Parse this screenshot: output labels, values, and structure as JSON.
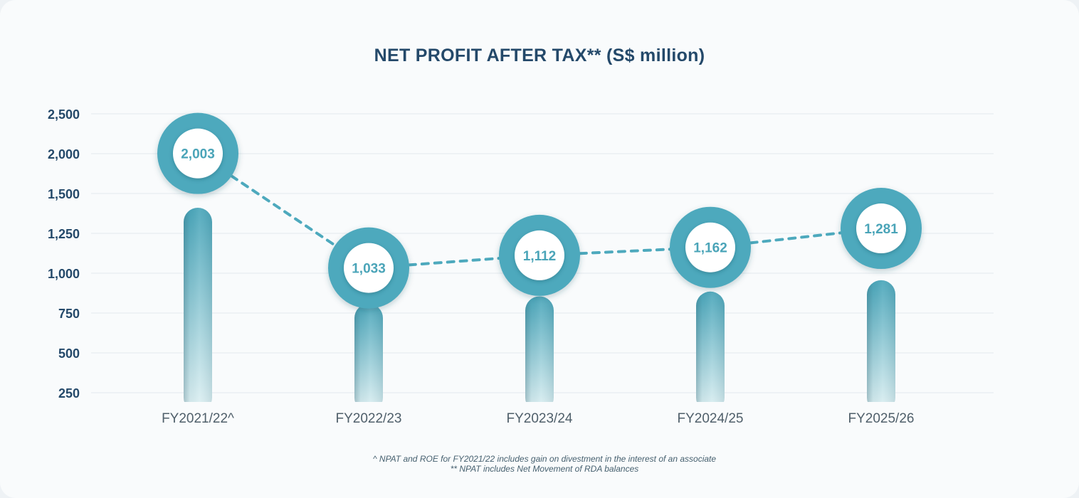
{
  "chart_data": {
    "type": "bar",
    "title": "NET PROFIT AFTER TAX** (S$ million)",
    "xlabel": "",
    "ylabel": "",
    "categories": [
      "FY2021/22^",
      "FY2022/23",
      "FY2023/24",
      "FY2024/25",
      "FY2025/26"
    ],
    "values": [
      2003,
      1033,
      1112,
      1162,
      1281
    ],
    "value_labels": [
      "2,003",
      "1,033",
      "1,112",
      "1,162",
      "1,281"
    ],
    "yticks": [
      "250",
      "500",
      "750",
      "1,000",
      "1,250",
      "1,500",
      "2,000",
      "2,500"
    ],
    "grid": true,
    "legend": "none",
    "colors": {
      "title": "#24496a",
      "axis_text": "#24496a",
      "category_text": "#4f5f6a",
      "ring": "#4da9bd",
      "ring_text": "#4aa4b8",
      "dashed_line": "#4da9bd",
      "grid": "#e3e9ee",
      "bar_top": "#4aa6ba",
      "bar_bottom": "#e2f2f4"
    }
  },
  "footnotes": [
    "^ NPAT and ROE for FY2021/22 includes gain on divestment in the interest of an associate",
    "** NPAT includes Net Movement of RDA balances"
  ]
}
